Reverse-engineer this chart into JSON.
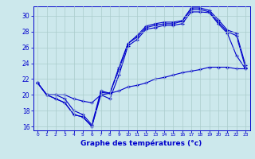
{
  "title": "Graphe des températures (°c)",
  "background_color": "#cce8ec",
  "grid_color": "#aacccc",
  "line_color": "#0000cc",
  "x_ticks": [
    0,
    1,
    2,
    3,
    4,
    5,
    6,
    7,
    8,
    9,
    10,
    11,
    12,
    13,
    14,
    15,
    16,
    17,
    18,
    19,
    20,
    21,
    22,
    23
  ],
  "y_ticks": [
    16,
    18,
    20,
    22,
    24,
    26,
    28,
    30
  ],
  "ylim": [
    15.5,
    31.2
  ],
  "xlim": [
    -0.5,
    23.5
  ],
  "series": [
    {
      "x": [
        0,
        1,
        2,
        3,
        4,
        5,
        6,
        7,
        8,
        9,
        10,
        11,
        12,
        13,
        14,
        15,
        16,
        17,
        18,
        19,
        20,
        21,
        22,
        23
      ],
      "y": [
        21.5,
        20.0,
        19.5,
        19.0,
        17.5,
        17.2,
        16.0,
        20.0,
        19.5,
        22.5,
        26.2,
        27.0,
        28.3,
        28.5,
        28.8,
        28.8,
        29.0,
        30.5,
        30.5,
        30.4,
        29.0,
        27.8,
        25.0,
        23.3
      ]
    },
    {
      "x": [
        0,
        1,
        2,
        3,
        4,
        5,
        6,
        7,
        8,
        9,
        10,
        11,
        12,
        13,
        14,
        15,
        16,
        17,
        18,
        19,
        20,
        21,
        22,
        23
      ],
      "y": [
        21.5,
        20.0,
        19.5,
        19.0,
        17.5,
        17.2,
        16.0,
        20.3,
        20.2,
        23.2,
        26.5,
        27.3,
        28.5,
        28.8,
        29.0,
        29.0,
        29.3,
        30.8,
        30.8,
        30.5,
        29.2,
        28.0,
        27.5,
        23.5
      ]
    },
    {
      "x": [
        0,
        1,
        2,
        3,
        4,
        5,
        6,
        7,
        8,
        9,
        10,
        11,
        12,
        13,
        14,
        15,
        16,
        17,
        18,
        19,
        20,
        21,
        22,
        23
      ],
      "y": [
        21.5,
        20.0,
        20.0,
        19.5,
        18.0,
        17.5,
        16.2,
        20.5,
        20.2,
        23.5,
        26.5,
        27.5,
        28.7,
        29.0,
        29.2,
        29.2,
        29.4,
        31.0,
        31.0,
        30.7,
        29.5,
        28.2,
        27.8,
        23.8
      ]
    },
    {
      "x": [
        0,
        1,
        2,
        3,
        4,
        5,
        6,
        7,
        8,
        9,
        10,
        11,
        12,
        13,
        14,
        15,
        16,
        17,
        18,
        19,
        20,
        21,
        22,
        23
      ],
      "y": [
        21.5,
        20.0,
        20.0,
        20.0,
        19.5,
        19.2,
        19.0,
        20.0,
        20.2,
        20.5,
        21.0,
        21.2,
        21.5,
        22.0,
        22.2,
        22.5,
        22.8,
        23.0,
        23.2,
        23.5,
        23.5,
        23.5,
        23.3,
        23.3
      ]
    }
  ]
}
